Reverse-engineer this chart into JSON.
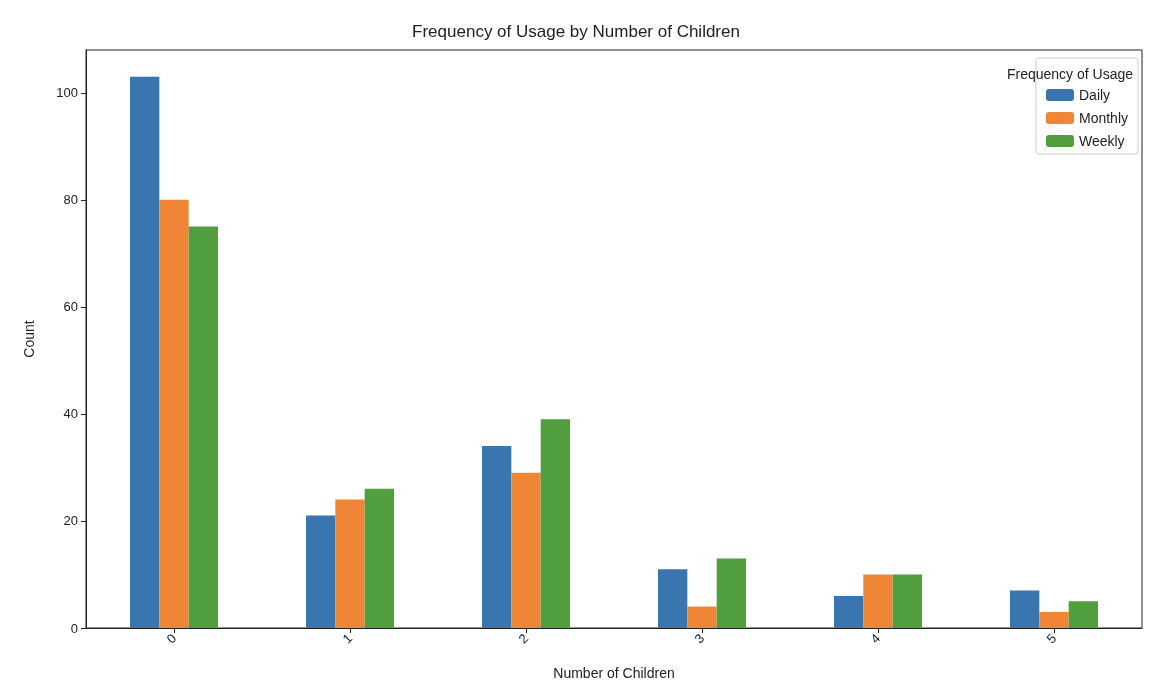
{
  "chart_data": {
    "type": "bar",
    "title": "Frequency of Usage by Number of Children",
    "xlabel": "Number of Children",
    "ylabel": "Count",
    "legend_title": "Frequency of Usage",
    "categories": [
      "0",
      "1",
      "2",
      "3",
      "4",
      "5"
    ],
    "series": [
      {
        "name": "Daily",
        "color": "#3a75af",
        "values": [
          103,
          21,
          34,
          11,
          6,
          7
        ]
      },
      {
        "name": "Monthly",
        "color": "#ef8636",
        "values": [
          80,
          24,
          29,
          4,
          10,
          3
        ]
      },
      {
        "name": "Weekly",
        "color": "#519e3e",
        "values": [
          75,
          26,
          39,
          13,
          10,
          5
        ]
      }
    ],
    "ylim": [
      0,
      108
    ],
    "yticks": [
      0,
      20,
      40,
      60,
      80,
      100
    ],
    "grid": false,
    "legend": "top right"
  }
}
